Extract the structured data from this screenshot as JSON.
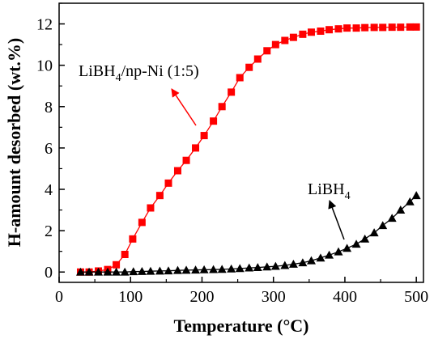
{
  "chart_data": {
    "type": "scatter",
    "xlabel": "Temperature (°C)",
    "ylabel": "H-amount desorbed (wt.%)",
    "xlim": [
      0,
      510
    ],
    "ylim": [
      -0.5,
      13
    ],
    "x_ticks": [
      "0",
      "100",
      "200",
      "300",
      "400",
      "500"
    ],
    "y_ticks": [
      "0",
      "2",
      "4",
      "6",
      "8",
      "10",
      "12"
    ],
    "grid": false,
    "legend": "none",
    "series": [
      {
        "name": "LiBH4/np-Ni (1:5)",
        "color": "#ff0000",
        "marker": "square",
        "x": [
          30,
          42,
          55,
          68,
          80,
          92,
          103,
          116,
          128,
          141,
          153,
          166,
          178,
          191,
          203,
          216,
          228,
          241,
          253,
          266,
          278,
          291,
          303,
          316,
          328,
          341,
          353,
          366,
          378,
          391,
          403,
          416,
          428,
          441,
          453,
          466,
          478,
          491,
          500
        ],
        "y": [
          0.0,
          0.0,
          0.05,
          0.12,
          0.35,
          0.85,
          1.6,
          2.4,
          3.1,
          3.7,
          4.3,
          4.9,
          5.4,
          6.0,
          6.6,
          7.3,
          8.0,
          8.7,
          9.4,
          9.9,
          10.3,
          10.7,
          11.0,
          11.2,
          11.35,
          11.5,
          11.6,
          11.65,
          11.72,
          11.76,
          11.8,
          11.8,
          11.82,
          11.83,
          11.83,
          11.84,
          11.84,
          11.85,
          11.85
        ]
      },
      {
        "name": "LiBH4",
        "color": "#000000",
        "marker": "triangle",
        "x": [
          30,
          42,
          55,
          68,
          80,
          92,
          104,
          116,
          128,
          141,
          153,
          166,
          178,
          191,
          203,
          216,
          228,
          241,
          253,
          266,
          278,
          291,
          303,
          316,
          328,
          341,
          353,
          366,
          378,
          391,
          403,
          416,
          428,
          441,
          453,
          466,
          478,
          491,
          500
        ],
        "y": [
          0.0,
          0.0,
          0.0,
          0.0,
          0.0,
          0.0,
          0.02,
          0.03,
          0.04,
          0.05,
          0.06,
          0.08,
          0.09,
          0.1,
          0.11,
          0.12,
          0.13,
          0.15,
          0.17,
          0.2,
          0.22,
          0.25,
          0.28,
          0.32,
          0.38,
          0.45,
          0.55,
          0.68,
          0.82,
          0.98,
          1.15,
          1.35,
          1.6,
          1.9,
          2.25,
          2.6,
          3.0,
          3.4,
          3.7
        ]
      }
    ],
    "annotations": [
      {
        "text_main": "LiBH",
        "text_sub": "4",
        "text_tail": "/np-Ni (1:5)"
      },
      {
        "text_main": "LiBH",
        "text_sub": "4",
        "text_tail": ""
      }
    ]
  }
}
